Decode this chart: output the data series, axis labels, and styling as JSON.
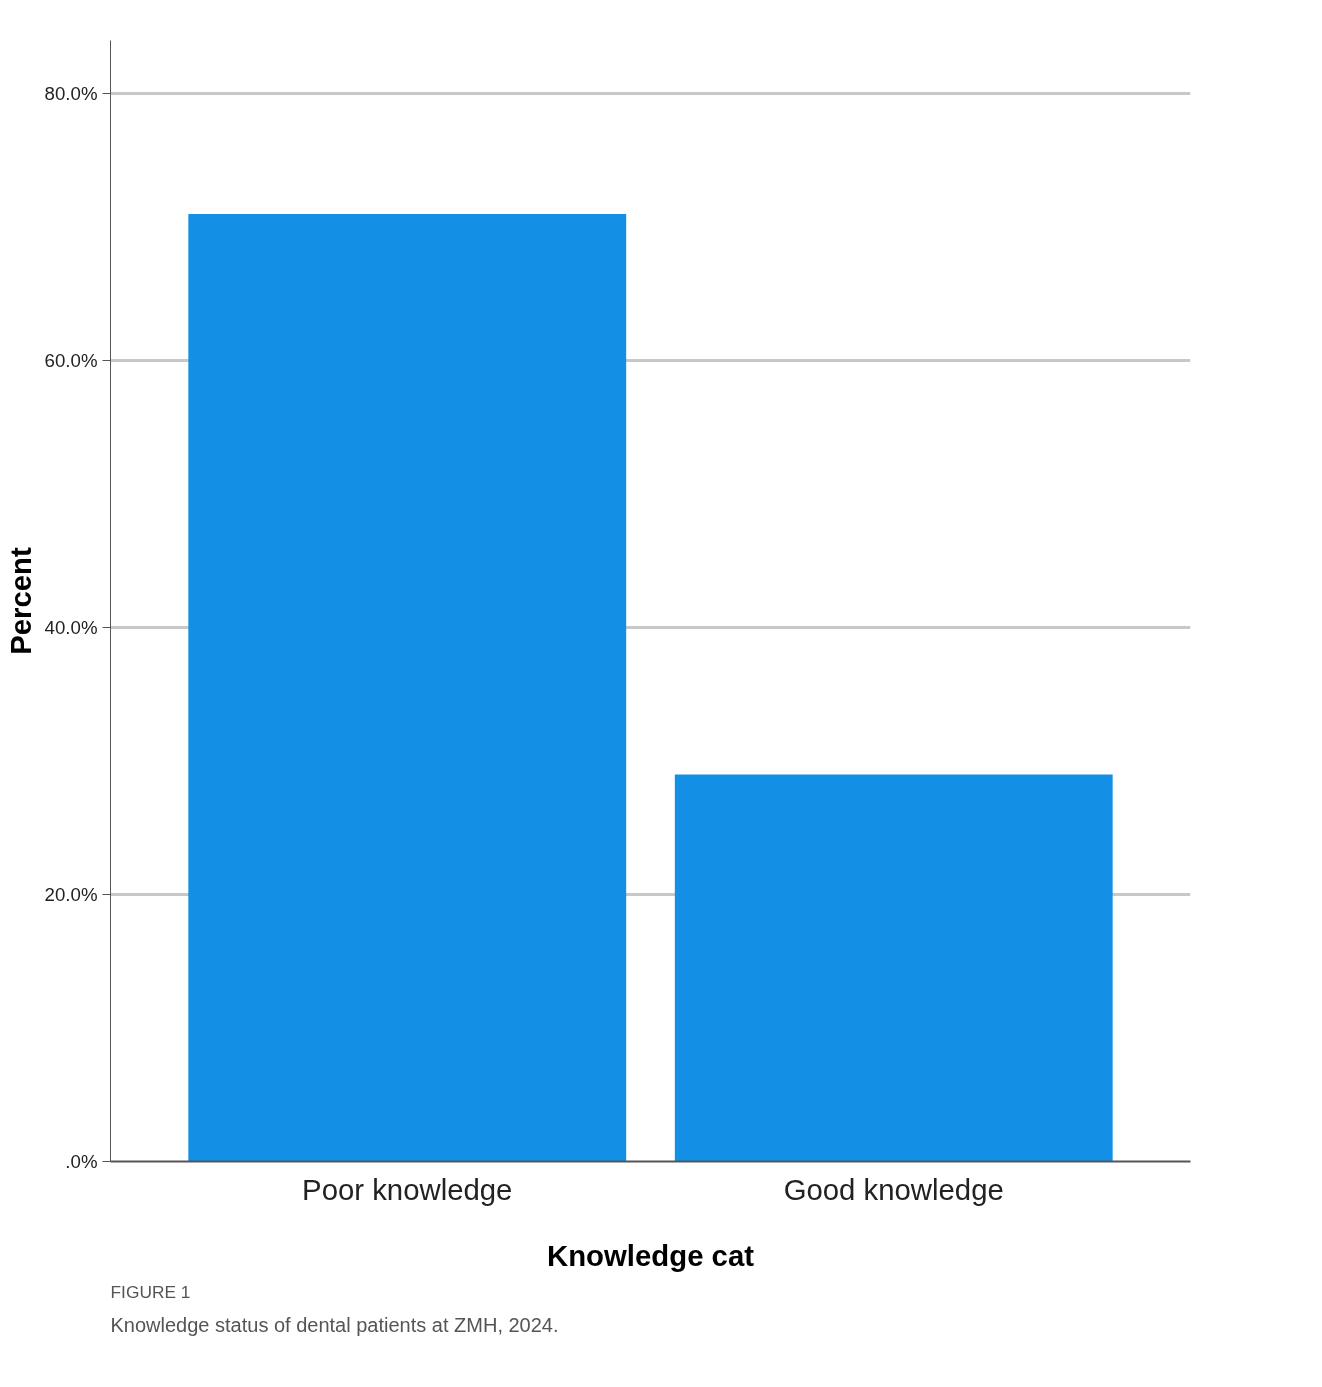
{
  "chart_data": {
    "type": "bar",
    "xlabel": "Knowledge cat",
    "ylabel": "Percent",
    "categories": [
      "Poor knowledge",
      "Good knowledge"
    ],
    "values": [
      71.0,
      29.0
    ],
    "color": "#1390e6",
    "ylim": [
      0,
      84
    ],
    "yticks": [
      {
        "value": 0,
        "label": ".0%"
      },
      {
        "value": 20,
        "label": "20.0%"
      },
      {
        "value": 40,
        "label": "40.0%"
      },
      {
        "value": 60,
        "label": "60.0%"
      },
      {
        "value": 80,
        "label": "80.0%"
      }
    ],
    "grid": "y",
    "annotations": [
      "FIGURE 1",
      "Knowledge status of dental patients at ZMH, 2024."
    ]
  }
}
